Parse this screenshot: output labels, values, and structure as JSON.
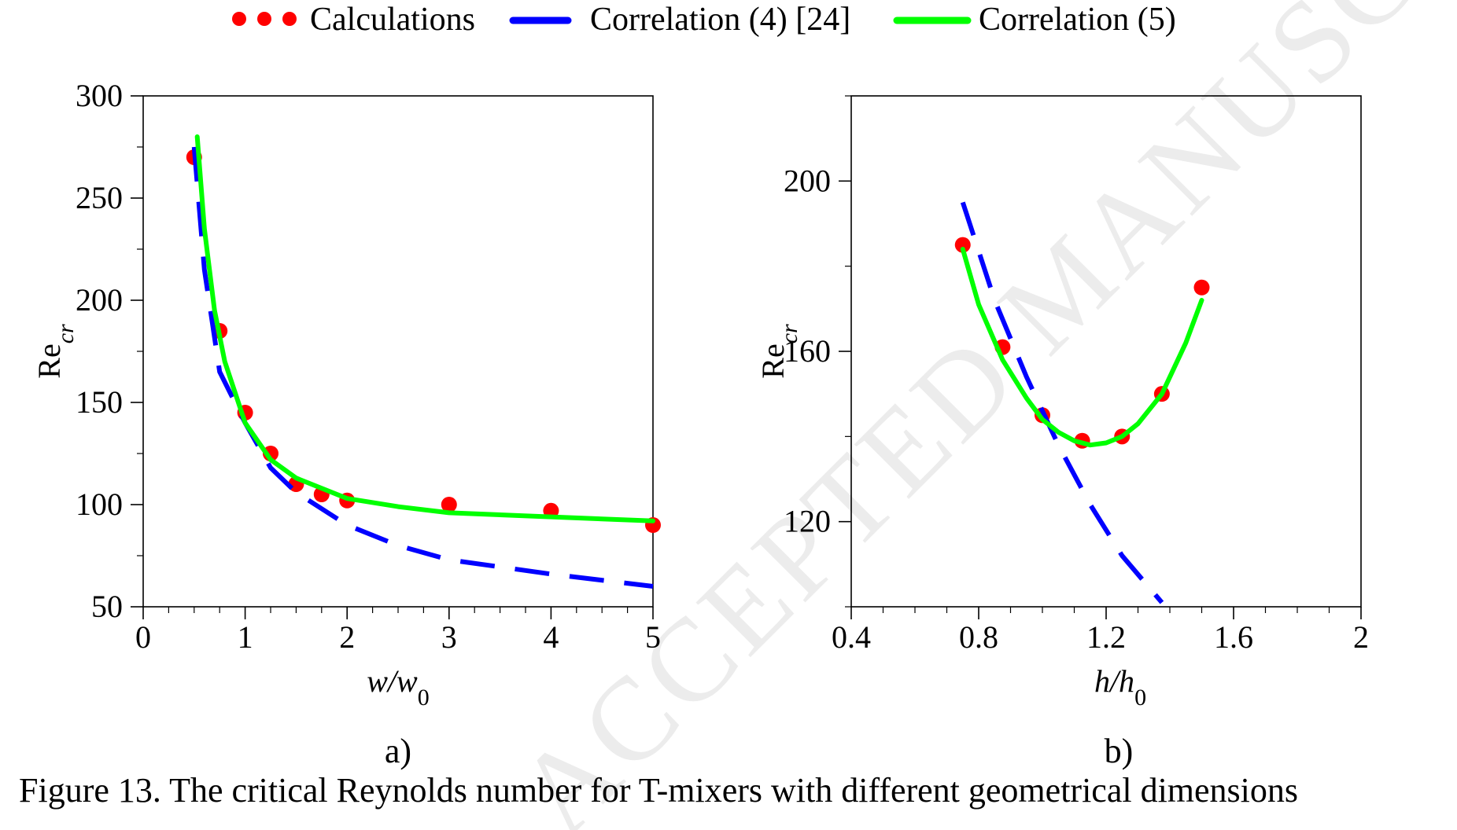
{
  "legend": {
    "items": [
      {
        "label": "Calculations",
        "kind": "dots",
        "color": "#ff0000"
      },
      {
        "label": "Correlation (4) [24]",
        "kind": "dash",
        "color": "#0000ff"
      },
      {
        "label": "Correlation (5)",
        "kind": "line",
        "color": "#00ff00"
      }
    ]
  },
  "caption": "Figure 13. The critical Reynolds number for T-mixers with different geometrical dimensions",
  "watermark": "ACCEPTED MANUSCRIPT",
  "chart_data": [
    {
      "type": "scatter",
      "panel_label": "a)",
      "xlabel": "w/w0",
      "ylabel": "Recr",
      "xlim": [
        0,
        5
      ],
      "ylim": [
        50,
        300
      ],
      "xticks": [
        0,
        1,
        2,
        3,
        4,
        5
      ],
      "yticks": [
        50,
        100,
        150,
        200,
        250,
        300
      ],
      "grid": false,
      "series": [
        {
          "name": "Calculations",
          "kind": "points",
          "color": "#ff0000",
          "x": [
            0.5,
            0.75,
            1.0,
            1.25,
            1.5,
            1.75,
            2.0,
            3.0,
            4.0,
            5.0
          ],
          "y": [
            270,
            185,
            145,
            125,
            110,
            105,
            102,
            100,
            97,
            90
          ]
        },
        {
          "name": "Correlation (4) [24]",
          "kind": "dashed-line",
          "color": "#0000ff",
          "x": [
            0.5,
            0.6,
            0.75,
            1.0,
            1.25,
            1.5,
            2.0,
            2.5,
            3.0,
            4.0,
            5.0
          ],
          "y": [
            275,
            215,
            165,
            140,
            118,
            106,
            90,
            80,
            73,
            66,
            60
          ]
        },
        {
          "name": "Correlation (5)",
          "kind": "solid-line",
          "color": "#00ff00",
          "x": [
            0.53,
            0.6,
            0.7,
            0.8,
            1.0,
            1.25,
            1.5,
            2.0,
            2.5,
            3.0,
            4.0,
            5.0
          ],
          "y": [
            280,
            235,
            195,
            170,
            140,
            122,
            113,
            103,
            99,
            96,
            94,
            92
          ]
        }
      ]
    },
    {
      "type": "scatter",
      "panel_label": "b)",
      "xlabel": "h/h0",
      "ylabel": "Recr",
      "xlim": [
        0.4,
        2.0
      ],
      "ylim": [
        100,
        220
      ],
      "xticks": [
        0.4,
        0.8,
        1.2,
        1.6,
        2.0
      ],
      "xticklabels": [
        "0.4",
        "0.8",
        "1.2",
        "1.6",
        "2"
      ],
      "yticks": [
        120,
        160,
        200
      ],
      "grid": false,
      "series": [
        {
          "name": "Calculations",
          "kind": "points",
          "color": "#ff0000",
          "x": [
            0.75,
            0.875,
            1.0,
            1.125,
            1.25,
            1.375,
            1.5
          ],
          "y": [
            185,
            161,
            145,
            139,
            140,
            150,
            175
          ]
        },
        {
          "name": "Correlation (4) [24]",
          "kind": "dashed-line",
          "color": "#0000ff",
          "x": [
            0.75,
            0.85,
            0.95,
            1.05,
            1.15,
            1.25,
            1.375
          ],
          "y": [
            195,
            172,
            154,
            138,
            124,
            112,
            101
          ]
        },
        {
          "name": "Correlation (5)",
          "kind": "solid-line",
          "color": "#00ff00",
          "x": [
            0.75,
            0.8,
            0.875,
            0.95,
            1.0,
            1.05,
            1.1,
            1.15,
            1.2,
            1.25,
            1.3,
            1.375,
            1.45,
            1.5
          ],
          "y": [
            184,
            171,
            158,
            149,
            144,
            141,
            139,
            138,
            138.5,
            140,
            143,
            150,
            162,
            172
          ]
        }
      ]
    }
  ]
}
